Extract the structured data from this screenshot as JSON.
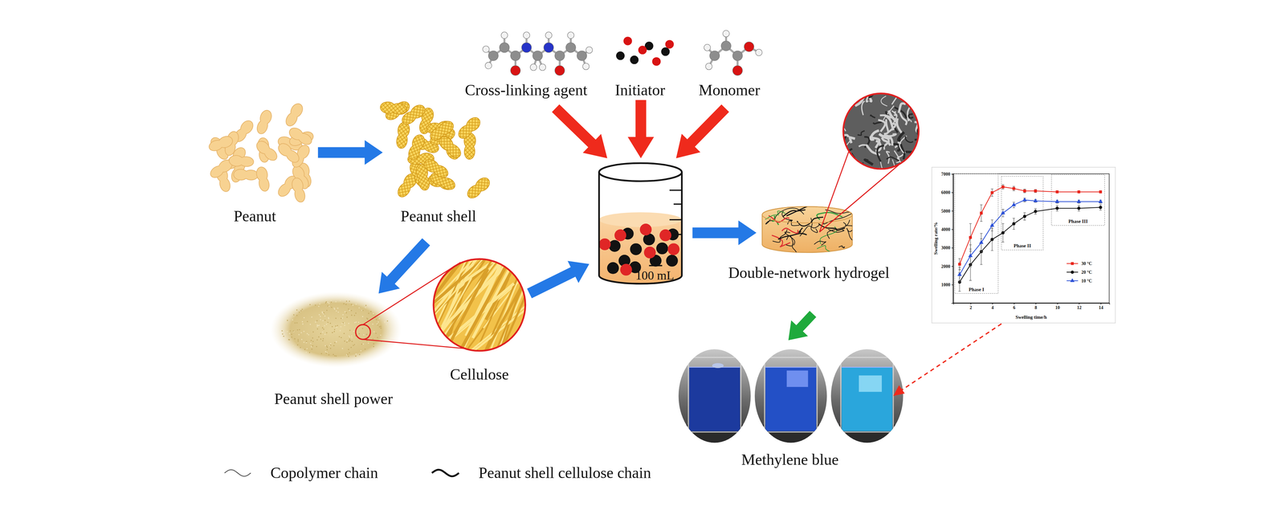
{
  "nodes": [
    {
      "label": "Peanut"
    },
    {
      "label": "Peanut shell"
    },
    {
      "label": "Peanut shell power"
    },
    {
      "label": "Cellulose"
    },
    {
      "label": "Cross-linking agent"
    },
    {
      "label": "Initiator"
    },
    {
      "label": "Monomer"
    },
    {
      "label": "100 mL"
    },
    {
      "label": "Double-network hydrogel"
    },
    {
      "label": "Methylene blue"
    }
  ],
  "legend": [
    {
      "label": "Copolymer chain"
    },
    {
      "label": "Peanut shell cellulose chain"
    }
  ],
  "chart_data": {
    "type": "line",
    "x_label": "Swelling time/h",
    "y_label": "Swelling rate/%",
    "x": [
      1,
      2,
      3,
      4,
      5,
      6,
      7,
      8,
      10,
      12,
      14
    ],
    "xlim": [
      0.4,
      14.8
    ],
    "xticks": [
      2,
      4,
      6,
      8,
      10,
      12,
      14
    ],
    "ylim": [
      0,
      7000
    ],
    "yticks": [
      1000,
      2000,
      3000,
      4000,
      5000,
      6000,
      7000
    ],
    "legend": "lower right",
    "series": [
      {
        "name": "30 °C",
        "color": "#e8251c",
        "marker": "square",
        "values": [
          2100,
          3550,
          4870,
          5980,
          6290,
          6200,
          6070,
          6070,
          6020,
          6020,
          6020
        ],
        "errors": [
          300,
          750,
          450,
          200,
          120,
          120,
          100,
          80,
          60,
          50,
          50
        ]
      },
      {
        "name": "20 °C",
        "color": "#111111",
        "marker": "circle",
        "values": [
          1130,
          2070,
          2780,
          3440,
          3800,
          4290,
          4690,
          4960,
          5130,
          5130,
          5180
        ],
        "errors": [
          500,
          850,
          700,
          600,
          500,
          300,
          200,
          150,
          150,
          150,
          150
        ]
      },
      {
        "name": "10 °C",
        "color": "#2a4fd6",
        "marker": "triangle",
        "values": [
          1530,
          2550,
          3270,
          4200,
          4870,
          5310,
          5580,
          5530,
          5490,
          5490,
          5490
        ],
        "errors": [
          400,
          600,
          500,
          300,
          200,
          150,
          100,
          80,
          80,
          80,
          80
        ]
      }
    ],
    "annotations": [
      {
        "text": "Phase I",
        "x0": 0.55,
        "x1": 4.56,
        "y0": 510,
        "y1": 7000
      },
      {
        "text": "Phase II",
        "x0": 4.86,
        "x1": 8.71,
        "y0": 2870,
        "y1": 6870
      },
      {
        "text": "Phase III",
        "x0": 9.47,
        "x1": 14.38,
        "y0": 4200,
        "y1": 6950
      }
    ]
  }
}
